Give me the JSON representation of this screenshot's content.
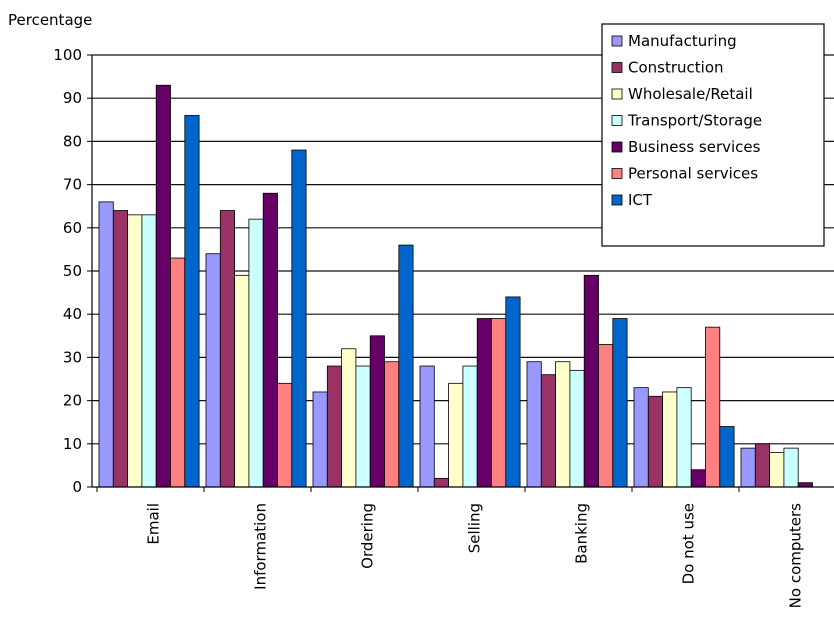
{
  "chart_data": {
    "type": "bar",
    "ylabel": "Percentage",
    "xlabel": "",
    "ylim": [
      0,
      100
    ],
    "yticks": [
      0,
      10,
      20,
      30,
      40,
      50,
      60,
      70,
      80,
      90,
      100
    ],
    "grid": true,
    "legend_position": "top-right",
    "categories": [
      "Email",
      "Information",
      "Ordering",
      "Selling",
      "Banking",
      "Do not use",
      "No computers"
    ],
    "series": [
      {
        "name": "Manufacturing",
        "color": "#9999ff",
        "values": [
          66,
          54,
          22,
          28,
          29,
          23,
          9
        ]
      },
      {
        "name": "Construction",
        "color": "#993366",
        "values": [
          64,
          64,
          28,
          2,
          26,
          21,
          10
        ]
      },
      {
        "name": "Wholesale/Retail",
        "color": "#ffffcc",
        "values": [
          63,
          49,
          32,
          24,
          29,
          22,
          8
        ]
      },
      {
        "name": "Transport/Storage",
        "color": "#ccffff",
        "values": [
          63,
          62,
          28,
          28,
          27,
          23,
          9
        ]
      },
      {
        "name": "Business services",
        "color": "#660066",
        "values": [
          93,
          68,
          35,
          39,
          49,
          4,
          1
        ]
      },
      {
        "name": "Personal services",
        "color": "#ff8080",
        "values": [
          53,
          24,
          29,
          39,
          33,
          37,
          0
        ]
      },
      {
        "name": "ICT",
        "color": "#0066cc",
        "values": [
          86,
          78,
          56,
          44,
          39,
          14,
          0
        ]
      }
    ]
  }
}
